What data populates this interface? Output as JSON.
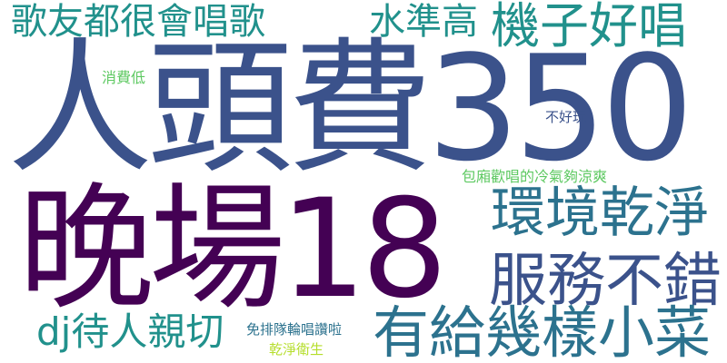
{
  "wordcloud": {
    "words": [
      {
        "text": "人頭費350",
        "color": "#3b528b"
      },
      {
        "text": "晚場18",
        "color": "#440154"
      },
      {
        "text": "歌友都很會唱歌",
        "color": "#21918c"
      },
      {
        "text": "水準高",
        "color": "#21918c"
      },
      {
        "text": "機子好唱",
        "color": "#21918c"
      },
      {
        "text": "環境乾淨",
        "color": "#2c728e"
      },
      {
        "text": "服務不錯",
        "color": "#3b528b"
      },
      {
        "text": "有給幾樣小菜",
        "color": "#2c728e"
      },
      {
        "text": "dj待人親切",
        "color": "#21918c"
      },
      {
        "text": "消費低",
        "color": "#5ec962"
      },
      {
        "text": "不好玩",
        "color": "#3b528b"
      },
      {
        "text": "包廂歡唱的冷氣夠涼爽",
        "color": "#5ec962"
      },
      {
        "text": "免排隊輪唱讚啦",
        "color": "#2c728e"
      },
      {
        "text": "乾淨衛生",
        "color": "#b5de2b"
      }
    ]
  }
}
